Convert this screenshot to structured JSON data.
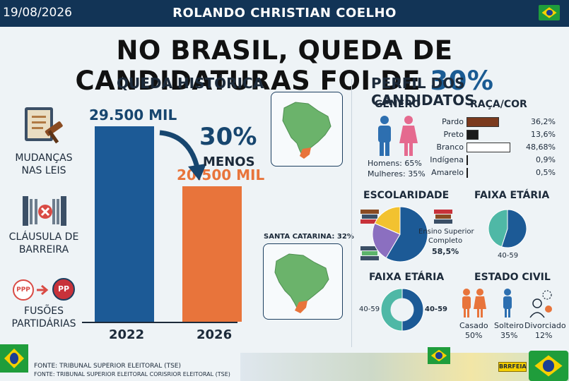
{
  "header": {
    "date": "19/08/2026",
    "author": "ROLANDO CHRISTIAN COELHO"
  },
  "headline": {
    "main": "NO BRASIL, QUEDA DE CANDIDATURAS FOI DE",
    "highlight": "30%"
  },
  "left": {
    "title": "QUEDA HISTÓRICA",
    "reasons": [
      {
        "line1": "MUDANÇAS",
        "line2": "NAS LEIS"
      },
      {
        "line1": "CLÁUSULA DE",
        "line2": "BARREIRA"
      },
      {
        "line1": "FUSÕES",
        "line2": "PARTIDÁRIAS"
      }
    ],
    "party_icons": [
      "PPP",
      "PP"
    ],
    "drop": {
      "percent": "30%",
      "word": "MENOS"
    }
  },
  "maps": {
    "caption": "SANTA CATARINA: 32%"
  },
  "right": {
    "title": "PERFIL DOS CANDIDATOS",
    "genero": {
      "title": "GÊNERO",
      "men": "Homens: 65%",
      "women": "Mulheres: 35%"
    },
    "raca_title": "RAÇA/COR",
    "escolaridade": {
      "title": "ESCOLARIDADE",
      "label1": "Ensino Superior",
      "label2": "Completo",
      "value": "58,5%"
    },
    "faixa1": {
      "title": "FAIXA ETÁRIA",
      "label": "40-59"
    },
    "faixa2": {
      "title": "FAIXA ETÁRIA",
      "left_label": "40-59",
      "right_label": "40-59"
    },
    "civil": {
      "title": "ESTADO CIVIL",
      "items": [
        {
          "label": "Casado",
          "value": "50%"
        },
        {
          "label": "Solteiro",
          "value": "35%"
        },
        {
          "label": "Divorciado",
          "value": "12%"
        }
      ]
    }
  },
  "source": {
    "line1": "FONTE: TRIBUNAL SUPERIOR ELEITORAL (TSE)",
    "line2": "FONTE: TRIBUNAL SUPERIOR ELEITORAL CORISRIOR ELEITORAL (TSE)"
  },
  "badge": "BRRFEIA",
  "colors": {
    "navy": "#123456",
    "blue": "#1c5a96",
    "orange": "#e8743b",
    "green": "#5cb46b",
    "brown": "#7b3a1e"
  },
  "chart_data": [
    {
      "type": "bar",
      "categories": [
        "2022",
        "2026"
      ],
      "values": [
        29500,
        20500
      ],
      "data_labels": [
        "29.500 MIL",
        "20.500 MIL"
      ],
      "title": "QUEDA HISTÓRICA",
      "ylim": [
        0,
        32000
      ],
      "colors": [
        "#1c5a96",
        "#e8743b"
      ]
    },
    {
      "type": "bar",
      "title": "RAÇA/COR",
      "categories": [
        "Pardo",
        "Preto",
        "Branco",
        "Indígena",
        "Amarelo"
      ],
      "values": [
        36.2,
        13.6,
        48.68,
        0.9,
        0.5
      ],
      "data_labels": [
        "36,2%",
        "13,6%",
        "48,68%",
        "0,9%",
        "0,5%"
      ],
      "colors": [
        "#7b3a1e",
        "#1b1b1b",
        "#ffffff",
        "#1b1b1b",
        "#1b1b1b"
      ]
    },
    {
      "type": "pie",
      "title": "ESCOLARIDADE",
      "values": [
        58.5,
        23,
        18.5
      ],
      "colors": [
        "#1c5a96",
        "#8b6fc0",
        "#f2c230"
      ]
    },
    {
      "type": "pie",
      "title": "FAIXA ETÁRIA",
      "values": [
        55,
        45
      ],
      "colors": [
        "#1c5a96",
        "#4fb8a6"
      ]
    },
    {
      "type": "pie",
      "title": "FAIXA ETÁRIA",
      "donut": true,
      "values": [
        50,
        50
      ],
      "colors": [
        "#1c5a96",
        "#4fb8a6"
      ]
    }
  ]
}
